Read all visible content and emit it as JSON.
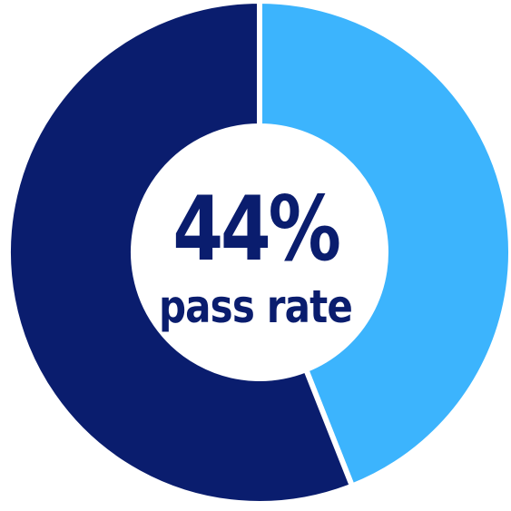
{
  "chart_data": {
    "type": "pie",
    "variant": "donut",
    "values": [
      44,
      56
    ],
    "colors": [
      "#3cb4fd",
      "#0a1d6e"
    ],
    "center_value": "44%",
    "center_label": "pass rate",
    "background": "#ffffff",
    "separator_color": "#ffffff"
  }
}
